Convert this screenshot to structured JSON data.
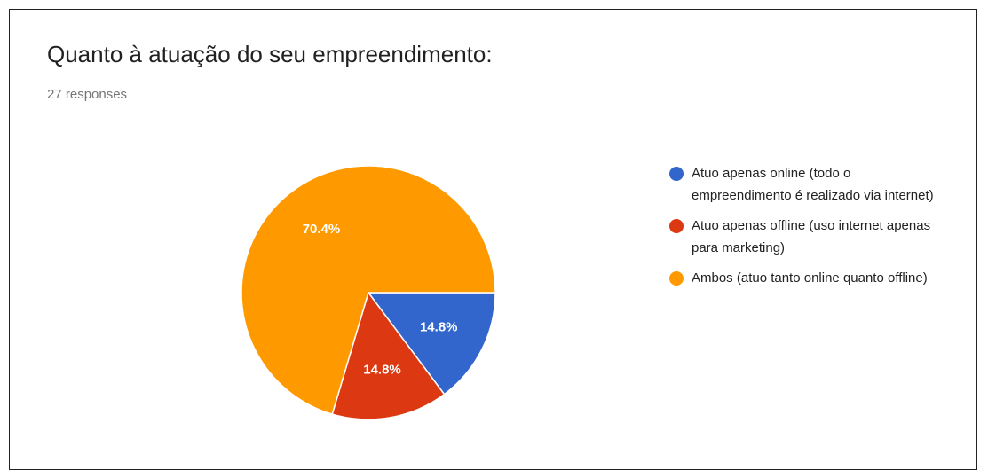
{
  "chart_data": {
    "type": "pie",
    "title": "Quanto à atuação do seu empreendimento:",
    "subtitle": "27 responses",
    "categories": [
      "Atuo apenas online (todo o empreendimento é realizado via internet)",
      "Atuo apenas offline (uso internet apenas para marketing)",
      "Ambos (atuo tanto online quanto offline)"
    ],
    "values": [
      14.8,
      14.8,
      70.4
    ],
    "value_labels": [
      "14.8%",
      "14.8%",
      "70.4%"
    ],
    "colors": [
      "#3366cc",
      "#dc3912",
      "#ff9900"
    ],
    "legend": "right"
  }
}
